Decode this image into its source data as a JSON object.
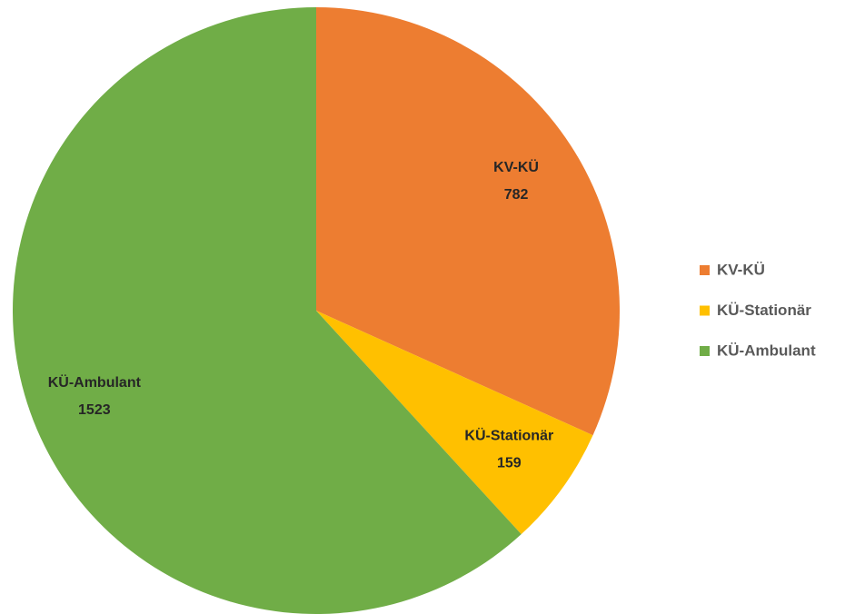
{
  "chart_data": {
    "type": "pie",
    "categories": [
      "KV-KÜ",
      "KÜ-Stationär",
      "KÜ-Ambulant"
    ],
    "values": [
      782,
      159,
      1523
    ],
    "colors": [
      "#ed7d31",
      "#ffc000",
      "#70ad47"
    ],
    "legend": "right"
  }
}
